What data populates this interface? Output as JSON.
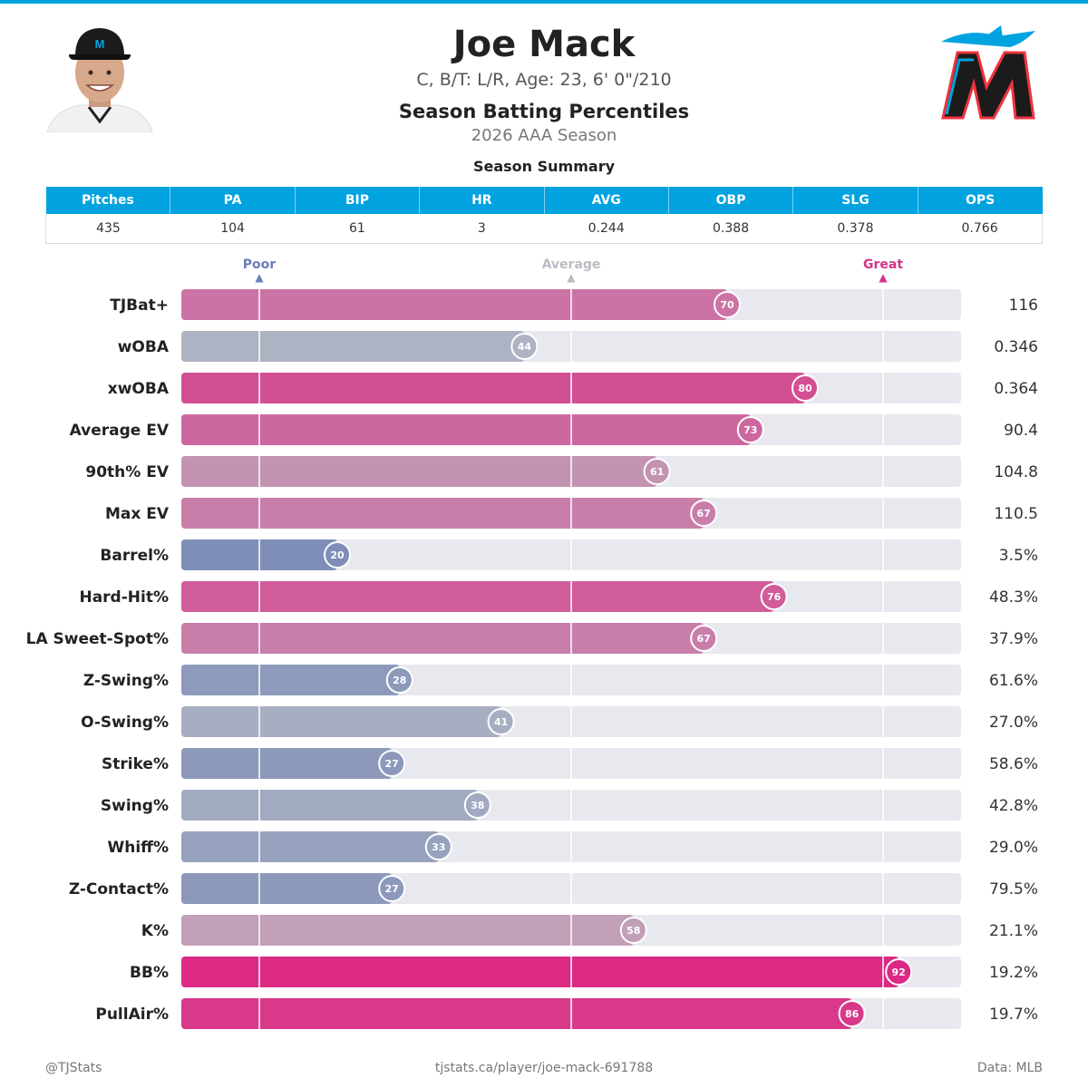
{
  "header": {
    "player_name": "Joe Mack",
    "bio": "C, B/T: L/R, Age: 23, 6' 0\"/210",
    "title": "Season Batting Percentiles",
    "season": "2026 AAA Season"
  },
  "summary": {
    "title": "Season Summary",
    "columns": [
      "Pitches",
      "PA",
      "BIP",
      "HR",
      "AVG",
      "OBP",
      "SLG",
      "OPS"
    ],
    "values": [
      "435",
      "104",
      "61",
      "3",
      "0.244",
      "0.388",
      "0.378",
      "0.766"
    ]
  },
  "markers": {
    "poor": "Poor",
    "average": "Average",
    "great": "Great"
  },
  "colors": {
    "accent": "#00a3e0",
    "poor": "#6a7fb5",
    "average": "#b9bcc4",
    "great": "#dc2a84",
    "track": "#e8e9ef"
  },
  "chart_data": {
    "type": "bar",
    "categories": [
      "TJBat+",
      "wOBA",
      "xwOBA",
      "Average EV",
      "90th% EV",
      "Max EV",
      "Barrel%",
      "Hard-Hit%",
      "LA Sweet-Spot%",
      "Z-Swing%",
      "O-Swing%",
      "Strike%",
      "Swing%",
      "Whiff%",
      "Z-Contact%",
      "K%",
      "BB%",
      "PullAir%"
    ],
    "values": [
      70,
      44,
      80,
      73,
      61,
      67,
      20,
      76,
      67,
      28,
      41,
      27,
      38,
      33,
      27,
      58,
      92,
      86
    ],
    "stat_values": [
      "116",
      "0.346",
      "0.364",
      "90.4",
      "104.8",
      "110.5",
      "3.5%",
      "48.3%",
      "37.9%",
      "61.6%",
      "27.0%",
      "58.6%",
      "42.8%",
      "29.0%",
      "79.5%",
      "21.1%",
      "19.2%",
      "19.7%"
    ],
    "xlim": [
      0,
      100
    ],
    "reference_lines": [
      10,
      50,
      90
    ]
  },
  "footer": {
    "handle": "@TJStats",
    "url": "tjstats.ca/player/joe-mack-691788",
    "source": "Data: MLB"
  }
}
